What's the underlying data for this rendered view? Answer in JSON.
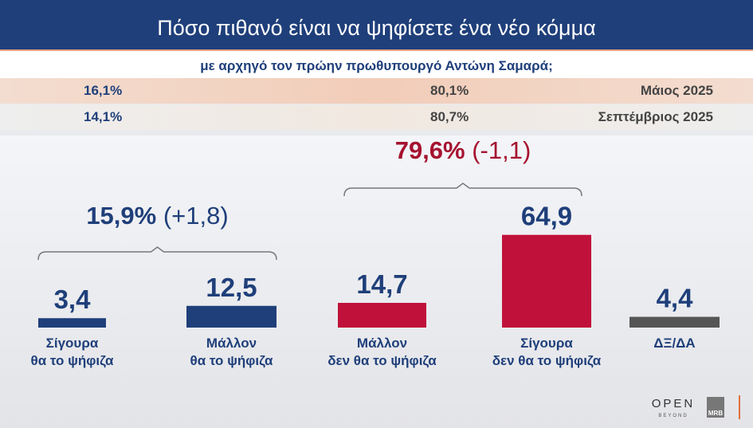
{
  "header": {
    "title": "Πόσο πιθανό είναι να ψηφίσετε ένα νέο κόμμα",
    "subtitle": "με αρχηγό τον πρώην πρωθυπουργό Αντώνη Σαμαρά;"
  },
  "history": [
    {
      "yes": "16,1%",
      "no": "80,1%",
      "period": "Μάιος 2025"
    },
    {
      "yes": "14,1%",
      "no": "80,7%",
      "period": "Σεπτέμβριος 2025"
    }
  ],
  "chart_data": {
    "type": "bar",
    "categories": [
      "Σίγουρα θα το ψήφιζα",
      "Μάλλον θα το ψήφιζα",
      "Μάλλον δεν θα το ψήφιζα",
      "Σίγουρα δεν θα το ψήφιζα",
      "ΔΞ/ΔΑ"
    ],
    "category_lines": [
      [
        "Σίγουρα",
        "θα το ψήφιζα"
      ],
      [
        "Μάλλον",
        "θα το ψήφιζα"
      ],
      [
        "Μάλλον",
        "δεν θα το ψήφιζα"
      ],
      [
        "Σίγουρα",
        "δεν θα το ψήφιζα"
      ],
      [
        "ΔΞ/ΔΑ"
      ]
    ],
    "values": [
      3.4,
      12.5,
      14.7,
      64.9,
      4.4
    ],
    "value_labels": [
      "3,4",
      "12,5",
      "14,7",
      "64,9",
      "4,4"
    ],
    "colors": [
      "#1f3f7a",
      "#1f3f7a",
      "#c0113a",
      "#c0113a",
      "#555555"
    ],
    "groups": [
      {
        "total": "15,9%",
        "change": "(+1,8)",
        "color": "#1f3f7a"
      },
      {
        "total": "79,6%",
        "change": "(-1,1)",
        "color": "#a5122f"
      }
    ]
  },
  "logos": {
    "open": "OPEN",
    "open_sub": "BEYOND",
    "mrb": "MRB"
  }
}
